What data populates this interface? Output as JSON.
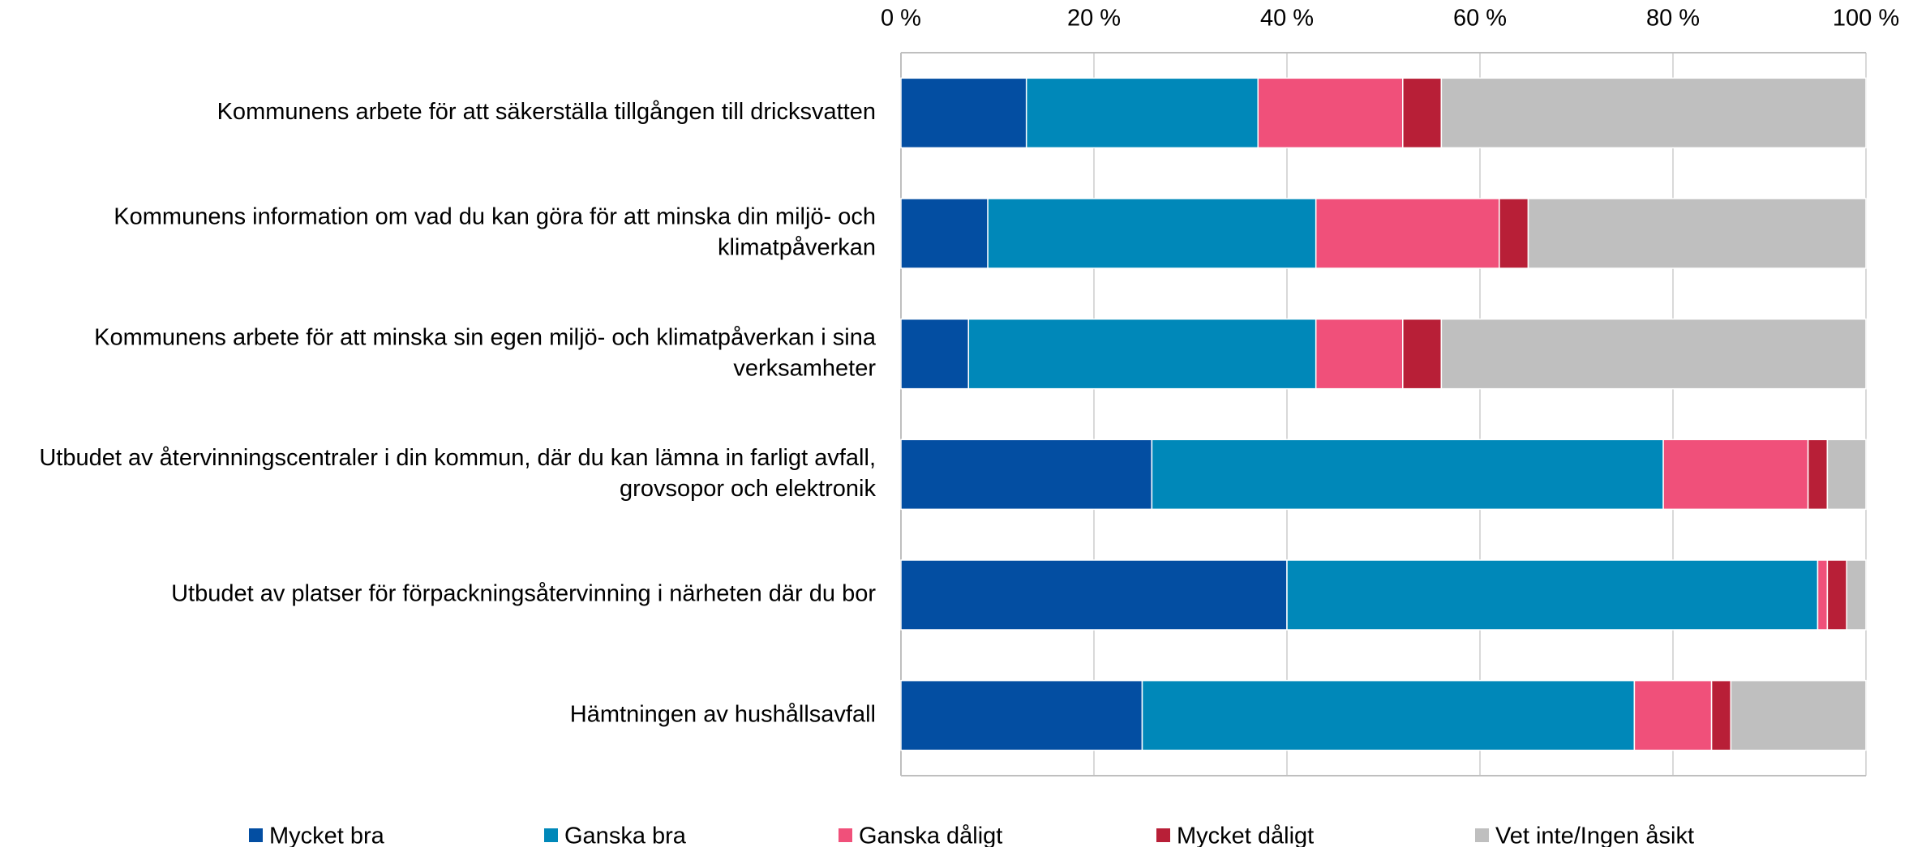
{
  "chart_data": {
    "type": "stacked-barh",
    "categories": [
      [
        "Kommunens arbete för att säkerställa tillgången till dricksvatten"
      ],
      [
        "Kommunens information om vad du kan göra för att minska din miljö- och",
        "klimatpåverkan"
      ],
      [
        "Kommunens arbete för att minska sin egen miljö- och klimatpåverkan i sina",
        "verksamheter"
      ],
      [
        "Utbudet av återvinningscentraler i din kommun, där du kan lämna in farligt avfall,",
        "grovsopor och elektronik"
      ],
      [
        "Utbudet av platser för förpackningsåtervinning i närheten där du bor"
      ],
      [
        "Hämtningen av hushållsavfall"
      ]
    ],
    "series": [
      {
        "name": "Mycket bra",
        "color": "#034ea2",
        "values": [
          13,
          9,
          7,
          26,
          40,
          25
        ]
      },
      {
        "name": "Ganska bra",
        "color": "#0088b9",
        "values": [
          24,
          34,
          36,
          53,
          55,
          51
        ]
      },
      {
        "name": "Ganska dåligt",
        "color": "#f0507a",
        "values": [
          15,
          19,
          9,
          15,
          1,
          8
        ]
      },
      {
        "name": "Mycket dåligt",
        "color": "#b81f37",
        "values": [
          4,
          3,
          4,
          2,
          2,
          2
        ]
      },
      {
        "name": "Vet inte/Ingen åsikt",
        "color": "#bfbfbf",
        "values": [
          44,
          35,
          44,
          4,
          2,
          14
        ]
      }
    ],
    "xlim": [
      0,
      100
    ],
    "xticks": [
      {
        "value": 0,
        "label": "0 %"
      },
      {
        "value": 20,
        "label": "20 %"
      },
      {
        "value": 40,
        "label": "40 %"
      },
      {
        "value": 60,
        "label": "60 %"
      },
      {
        "value": 80,
        "label": "80 %"
      },
      {
        "value": 100,
        "label": "100 %"
      }
    ],
    "grid": true,
    "legend": "bottom"
  }
}
